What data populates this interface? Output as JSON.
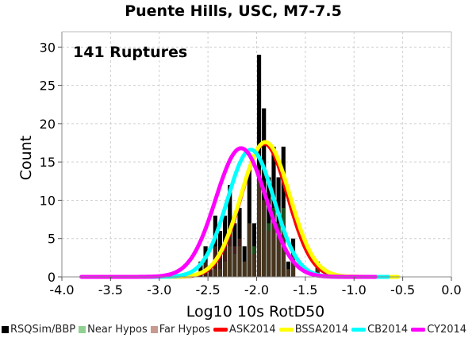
{
  "chart_data": {
    "type": "histogram",
    "title": "Puente Hills, USC, M7-7.5",
    "annotation": "141 Ruptures",
    "xlabel": "Log10 10s RotD50",
    "ylabel": "Count",
    "xlim": [
      -4.0,
      0.0
    ],
    "ylim": [
      0,
      32
    ],
    "xticks": [
      "-4.0",
      "-3.5",
      "-3.0",
      "-2.5",
      "-2.0",
      "-1.5",
      "-1.0",
      "-0.5",
      "0.0"
    ],
    "yticks": [
      "0",
      "5",
      "10",
      "15",
      "20",
      "25",
      "30"
    ],
    "bin_width": 0.05,
    "bin_starts": [
      -2.6,
      -2.55,
      -2.5,
      -2.45,
      -2.4,
      -2.35,
      -2.3,
      -2.25,
      -2.2,
      -2.15,
      -2.1,
      -2.05,
      -2.0,
      -1.95,
      -1.9,
      -1.85,
      -1.8,
      -1.75,
      -1.7,
      -1.65,
      -1.6,
      -1.55,
      -1.5,
      -1.45,
      -1.4
    ],
    "series": [
      {
        "name": "RSQSim/BBP",
        "color": "#000000",
        "values": [
          2,
          4,
          1,
          8,
          6,
          8,
          12,
          7,
          9,
          4,
          14,
          7,
          29,
          22,
          13,
          17,
          13,
          17,
          2,
          5,
          0,
          0,
          0,
          0,
          2
        ]
      },
      {
        "name": "Near Hypos",
        "color": "#90d090",
        "values": [
          0,
          0,
          0,
          1,
          1,
          2,
          4,
          3,
          4,
          2,
          7,
          4,
          13,
          10,
          7,
          9,
          7,
          9,
          1,
          3,
          0,
          0,
          0,
          0,
          1
        ]
      },
      {
        "name": "Far Hypos",
        "color": "#c89a90",
        "values": [
          0,
          2,
          1,
          4,
          3,
          4,
          6,
          4,
          5,
          2,
          7,
          3,
          14,
          10,
          6,
          7,
          6,
          7,
          1,
          2,
          0,
          0,
          0,
          0,
          1
        ]
      }
    ],
    "curves": [
      {
        "name": "ASK2014",
        "color": "#ff0000",
        "mean": -1.92,
        "sigma": 0.24,
        "peak": 17.4,
        "range": [
          -3.0,
          -0.62
        ]
      },
      {
        "name": "BSSA2014",
        "color": "#ffff00",
        "mean": -1.91,
        "sigma": 0.25,
        "peak": 17.6,
        "range": [
          -3.0,
          -0.55
        ]
      },
      {
        "name": "CB2014",
        "color": "#00ffff",
        "mean": -2.06,
        "sigma": 0.24,
        "peak": 16.6,
        "range": [
          -3.4,
          -0.65
        ]
      },
      {
        "name": "CY2014",
        "color": "#ff00ff",
        "mean": -2.16,
        "sigma": 0.26,
        "peak": 16.8,
        "range": [
          -3.8,
          -0.78
        ]
      }
    ]
  }
}
